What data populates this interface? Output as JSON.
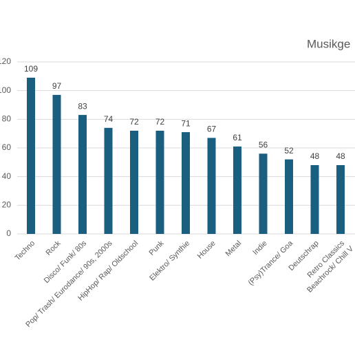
{
  "chart_data": {
    "type": "bar",
    "title": "Musikge",
    "categories": [
      "Techno",
      "Rock",
      "Disco/ Funk/ 80s",
      "Pop/ Trash/ Eurodance/ 90s, 2000s",
      "HipHop/ Rap/ Oldschool",
      "Punk",
      "Elektro/ Synthie",
      "House",
      "Metal",
      "Indie",
      "(Psy)Trance/ Goa",
      "Deutschrap",
      "Retro Classics",
      "Beachrock/ Chill V"
    ],
    "values": [
      109,
      97,
      83,
      74,
      72,
      72,
      71,
      67,
      61,
      56,
      52,
      48,
      48,
      null
    ],
    "color": "#1a5e80",
    "ylim": [
      0,
      120
    ],
    "yticks": [
      0,
      20,
      40,
      60,
      80,
      100,
      120
    ],
    "grid": true
  }
}
